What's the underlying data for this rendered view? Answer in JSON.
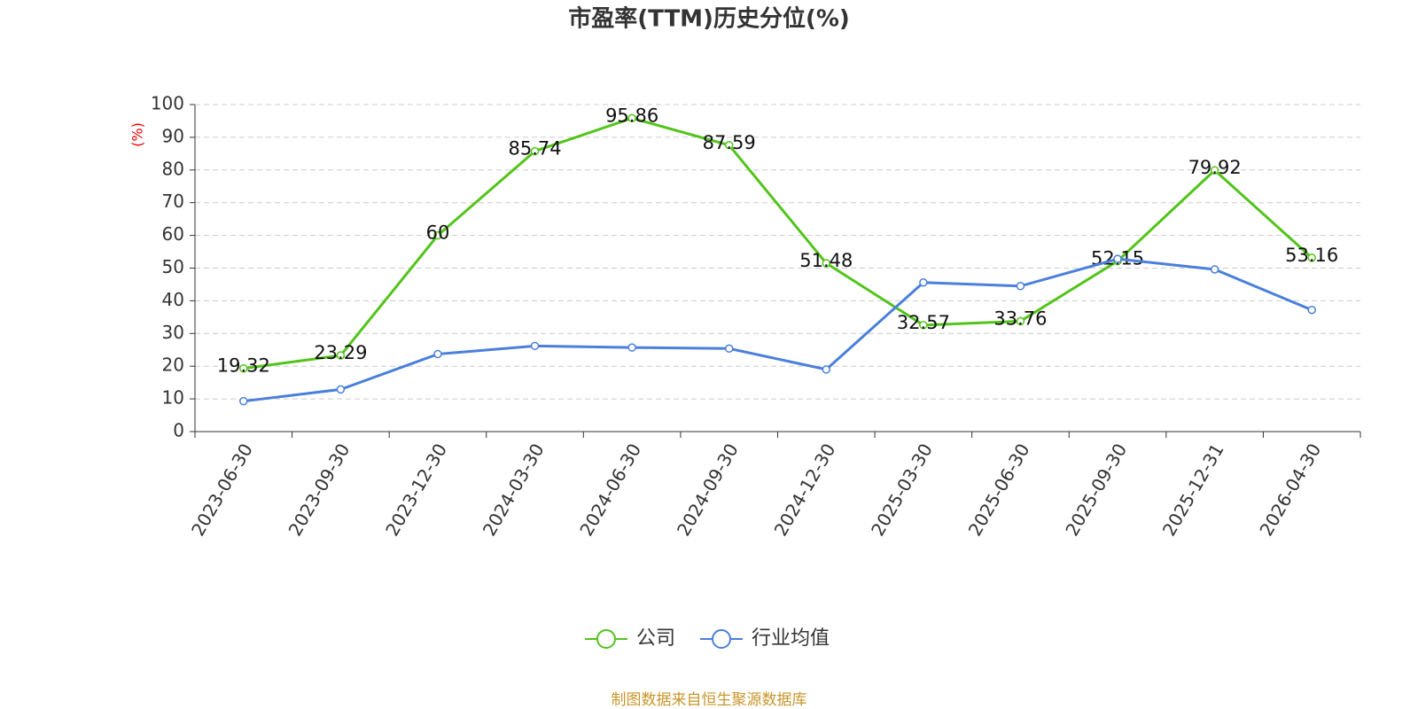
{
  "chart_data": {
    "type": "line",
    "title": "市盈率(TTM)历史分位(%)",
    "y_label": "(%)",
    "categories": [
      "2023-06-30",
      "2023-09-30",
      "2023-12-30",
      "2024-03-30",
      "2024-06-30",
      "2024-09-30",
      "2024-12-30",
      "2025-03-30",
      "2025-06-30",
      "2025-09-30",
      "2025-12-31",
      "2026-04-30"
    ],
    "series": [
      {
        "name": "公司",
        "color": "#52c41a",
        "values": [
          19.32,
          23.29,
          60,
          85.74,
          95.86,
          87.59,
          51.48,
          32.57,
          33.76,
          52.15,
          79.92,
          53.16
        ],
        "labels": true
      },
      {
        "name": "行业均值",
        "color": "#4a7fdc",
        "values": [
          9.3,
          12.9,
          23.7,
          26.2,
          25.7,
          25.4,
          19.0,
          45.6,
          44.5,
          52.8,
          49.6,
          37.2
        ],
        "labels": false
      }
    ],
    "ylim": [
      0,
      100
    ],
    "yticks": [
      0,
      10,
      20,
      30,
      40,
      50,
      60,
      70,
      80,
      90,
      100
    ],
    "grid": true,
    "source": "制图数据来自恒生聚源数据库"
  }
}
